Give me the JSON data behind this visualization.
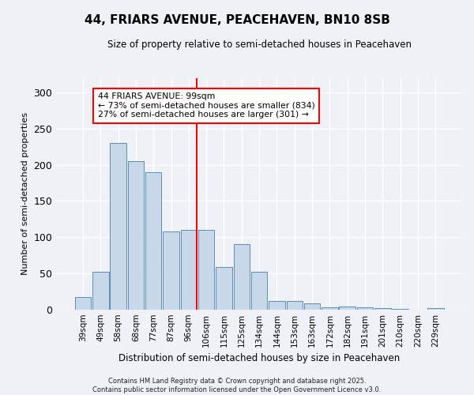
{
  "title": "44, FRIARS AVENUE, PEACEHAVEN, BN10 8SB",
  "subtitle": "Size of property relative to semi-detached houses in Peacehaven",
  "xlabel": "Distribution of semi-detached houses by size in Peacehaven",
  "ylabel": "Number of semi-detached properties",
  "categories": [
    "39sqm",
    "49sqm",
    "58sqm",
    "68sqm",
    "77sqm",
    "87sqm",
    "96sqm",
    "106sqm",
    "115sqm",
    "125sqm",
    "134sqm",
    "144sqm",
    "153sqm",
    "163sqm",
    "172sqm",
    "182sqm",
    "191sqm",
    "201sqm",
    "210sqm",
    "220sqm",
    "229sqm"
  ],
  "values": [
    17,
    52,
    230,
    205,
    190,
    108,
    110,
    110,
    59,
    90,
    52,
    12,
    12,
    8,
    3,
    4,
    3,
    2,
    1,
    0,
    2
  ],
  "bar_color": "#c8d8e8",
  "bar_edge_color": "#5b8db8",
  "vline_color": "red",
  "annotation_title": "44 FRIARS AVENUE: 99sqm",
  "annotation_line1": "← 73% of semi-detached houses are smaller (834)",
  "annotation_line2": "27% of semi-detached houses are larger (301) →",
  "annotation_box_color": "white",
  "annotation_box_edge": "red",
  "ylim": [
    0,
    320
  ],
  "yticks": [
    0,
    50,
    100,
    150,
    200,
    250,
    300
  ],
  "footer1": "Contains HM Land Registry data © Crown copyright and database right 2025.",
  "footer2": "Contains public sector information licensed under the Open Government Licence v3.0.",
  "bg_color": "#eef2f7"
}
